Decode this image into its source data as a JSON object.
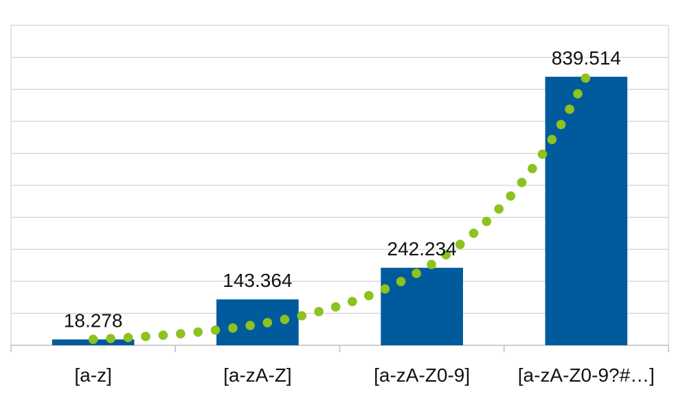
{
  "chart_data": {
    "type": "bar",
    "categories": [
      "[a-z]",
      "[a-zA-Z]",
      "[a-zA-Z0-9]",
      "[a-zA-Z0-9?#…]"
    ],
    "values": [
      18278,
      143364,
      242234,
      839514
    ],
    "value_labels": [
      "18.278",
      "143.364",
      "242.234",
      "839.514"
    ],
    "ylim": [
      0,
      1000000
    ],
    "grid": true,
    "legend": "none",
    "trendline": {
      "style": "dotted",
      "type": "exponential"
    },
    "colors": {
      "bar": "#005a9c",
      "trendline": "#8dc21f",
      "grid": "#c8c8c8"
    }
  }
}
